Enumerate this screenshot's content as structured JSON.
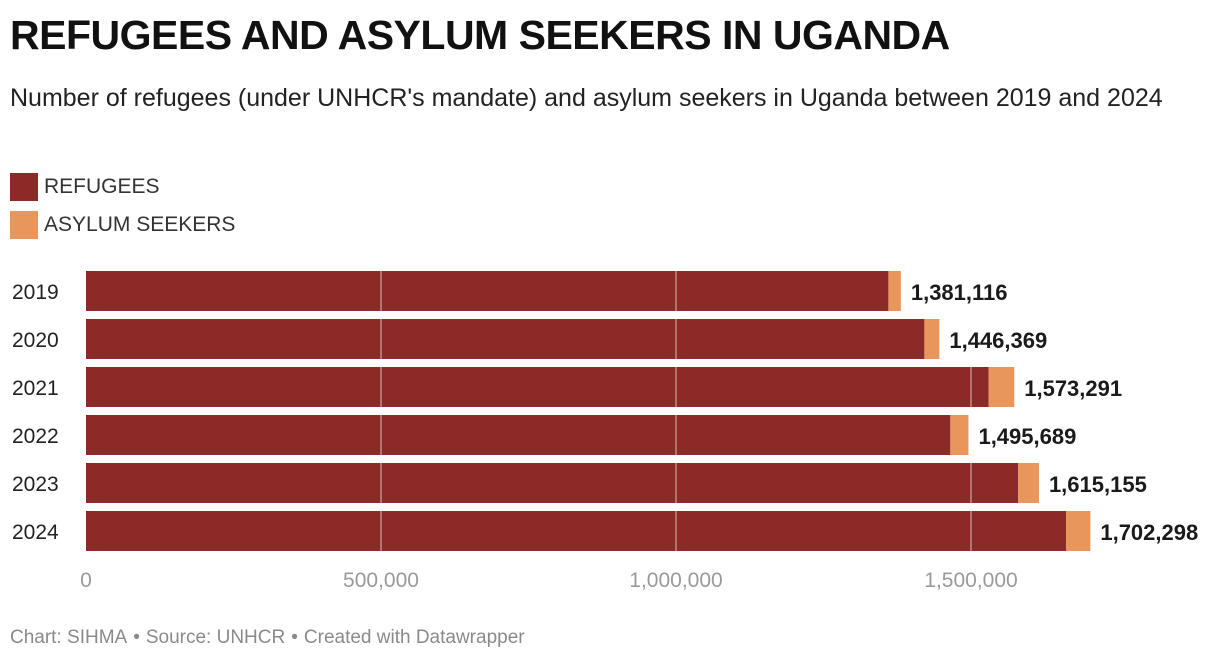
{
  "title": "REFUGEES AND ASYLUM SEEKERS IN UGANDA",
  "subtitle": "Number of refugees (under UNHCR's mandate) and asylum seekers in Uganda between 2019 and 2024",
  "legend": [
    {
      "label": "REFUGEES",
      "color": "#8b2a26"
    },
    {
      "label": "ASYLUM SEEKERS",
      "color": "#e8965c"
    }
  ],
  "footer": {
    "chart": "Chart: SIHMA",
    "source": "Source: UNHCR",
    "credit": "Created with Datawrapper",
    "separator": "•"
  },
  "chart_data": {
    "type": "bar",
    "orientation": "horizontal",
    "stacked": true,
    "categories": [
      "2019",
      "2020",
      "2021",
      "2022",
      "2023",
      "2024"
    ],
    "series": [
      {
        "name": "REFUGEES",
        "color": "#8b2a26",
        "values": [
          1360000,
          1421000,
          1530000,
          1465000,
          1580000,
          1661000
        ]
      },
      {
        "name": "ASYLUM SEEKERS",
        "color": "#e8965c",
        "values": [
          21116,
          25369,
          43291,
          30689,
          35155,
          41298
        ]
      }
    ],
    "totals": [
      1381116,
      1446369,
      1573291,
      1495689,
      1615155,
      1702298
    ],
    "total_labels": [
      "1,381,116",
      "1,446,369",
      "1,573,291",
      "1,495,689",
      "1,615,155",
      "1,702,298"
    ],
    "xlim": [
      0,
      1700000
    ],
    "xticks": [
      0,
      500000,
      1000000,
      1500000
    ],
    "xtick_labels": [
      "0",
      "500,000",
      "1,000,000",
      "1,500,000"
    ],
    "grid": true
  }
}
